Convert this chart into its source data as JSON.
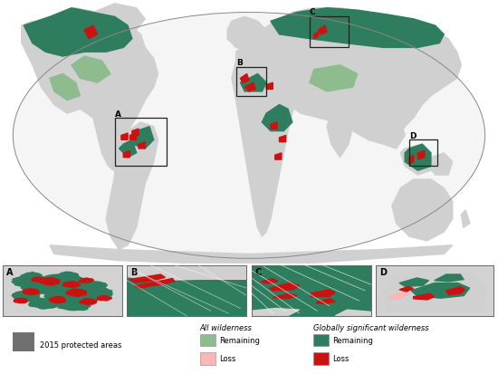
{
  "fig_width": 5.5,
  "fig_height": 4.14,
  "dpi": 100,
  "background_color": "#ffffff",
  "land_color": "#d0d0d0",
  "ocean_color": "#f5f5f5",
  "wilderness_remaining_all_color": "#8fbc8f",
  "wilderness_loss_all_color": "#ffb6b6",
  "wilderness_remaining_global_color": "#2e7d5e",
  "wilderness_loss_global_color": "#cc1111",
  "protected_areas_color": "#707070",
  "inset_box_color": "#222222",
  "label_fontsize": 6.5,
  "legend_fontsize": 6.0,
  "panel_labels": [
    "A",
    "B",
    "C",
    "D"
  ]
}
